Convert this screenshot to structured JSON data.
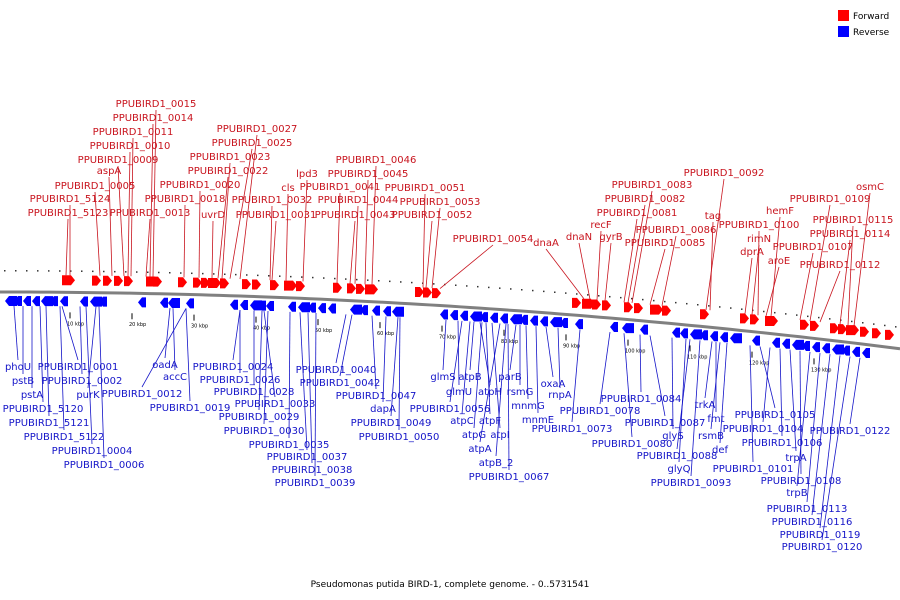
{
  "legend": {
    "forward": {
      "label": "Forward",
      "color": "#ff0000"
    },
    "reverse": {
      "label": "Reverse",
      "color": "#0000ff"
    }
  },
  "caption": "Pseudomonas putida BIRD-1, complete genome. - 0..5731541",
  "colors": {
    "forward_label": "#c8141e",
    "reverse_label": "#1414c8",
    "backbone": "#808080"
  },
  "genome": {
    "start": 0,
    "end": 5731541
  },
  "ticks": [
    "10 kbp",
    "20 kbp",
    "30 kbp",
    "40 kbp",
    "50 kbp",
    "60 kbp",
    "70 kbp",
    "80 kbp",
    "90 kbp",
    "100 kbp",
    "110 kbp",
    "120 kbp",
    "130 kbp"
  ],
  "forward_labels": [
    "PPUBIRD1_0015",
    "PPUBIRD1_0014",
    "PPUBIRD1_0011",
    "PPUBIRD1_0010",
    "PPUBIRD1_0009",
    "aspA",
    "PPUBIRD1_0005",
    "PPUBIRD1_5124",
    "PPUBIRD1_5123",
    "PPUBIRD1_0013",
    "PPUBIRD1_0018",
    "PPUBIRD1_0020",
    "PPUBIRD1_0027",
    "PPUBIRD1_0025",
    "PPUBIRD1_0023",
    "PPUBIRD1_0022",
    "uvrD",
    "PPUBIRD1_0031",
    "PPUBIRD1_0032",
    "cls",
    "lpd3",
    "PPUBIRD1_0046",
    "PPUBIRD1_0045",
    "PPUBIRD1_0041",
    "PPUBIRD1_0044",
    "PPUBIRD1_0043",
    "PPUBIRD1_0051",
    "PPUBIRD1_0053",
    "PPUBIRD1_0052",
    "PPUBIRD1_0054",
    "dnaA",
    "dnaN",
    "recF",
    "gyrB",
    "PPUBIRD1_0083",
    "PPUBIRD1_0082",
    "PPUBIRD1_0081",
    "PPUBIRD1_0086",
    "PPUBIRD1_0085",
    "PPUBIRD1_0092",
    "tag",
    "PPUBIRD1_0100",
    "rimN",
    "dprA",
    "hemF",
    "aroE",
    "PPUBIRD1_0109",
    "osmC",
    "PPUBIRD1_0115",
    "PPUBIRD1_0114",
    "PPUBIRD1_0107",
    "PPUBIRD1_0112"
  ],
  "reverse_labels": [
    "phoU",
    "pstB",
    "pstA",
    "PPUBIRD1_5120",
    "PPUBIRD1_5121",
    "PPUBIRD1_5122",
    "PPUBIRD1_0001",
    "PPUBIRD1_0002",
    "purK",
    "PPUBIRD1_0004",
    "PPUBIRD1_0006",
    "oadA",
    "accC",
    "PPUBIRD1_0012",
    "PPUBIRD1_0019",
    "PPUBIRD1_0024",
    "PPUBIRD1_0026",
    "PPUBIRD1_0028",
    "PPUBIRD1_0033",
    "PPUBIRD1_0029",
    "PPUBIRD1_0030",
    "PPUBIRD1_0035",
    "PPUBIRD1_0037",
    "PPUBIRD1_0038",
    "PPUBIRD1_0039",
    "PPUBIRD1_0040",
    "PPUBIRD1_0042",
    "PPUBIRD1_0047",
    "dapA",
    "PPUBIRD1_0049",
    "PPUBIRD1_0050",
    "glmS",
    "atpB",
    "glmU",
    "atpH",
    "PPUBIRD1_0056",
    "atpC",
    "atpF",
    "atpG",
    "atpI",
    "atpA",
    "atpB_2",
    "PPUBIRD1_0067",
    "parB",
    "rsmG",
    "mnmG",
    "mnmE",
    "oxaA",
    "rnpA",
    "PPUBIRD1_0073",
    "PPUBIRD1_0078",
    "PPUBIRD1_0080",
    "PPUBIRD1_0084",
    "PPUBIRD1_0087",
    "glyS",
    "PPUBIRD1_0088",
    "glyQ",
    "PPUBIRD1_0093",
    "trkA",
    "fmt",
    "rsmB",
    "def",
    "PPUBIRD1_0101",
    "PPUBIRD1_0105",
    "PPUBIRD1_0104",
    "PPUBIRD1_0106",
    "trpA",
    "PPUBIRD1_0108",
    "trpB",
    "PPUBIRD1_0113",
    "PPUBIRD1_0116",
    "PPUBIRD1_0119",
    "PPUBIRD1_0120",
    "PPUBIRD1_0122"
  ]
}
